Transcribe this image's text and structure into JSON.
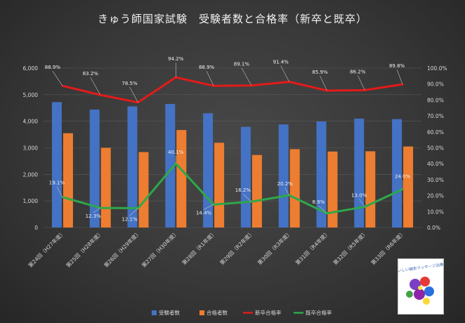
{
  "chart_data": {
    "type": "bar",
    "title": "きゅう師国家試験　受験者数と合格率（新卒と既卒）",
    "categories": [
      "第24回（H27年度）",
      "第25回（H28年度）",
      "第26回（H29年度）",
      "第27回（H30年度）",
      "第28回（R1年度）",
      "第29回（R2年度）",
      "第30回（R3年度）",
      "第31回（R4年度）",
      "第32回（R5年度）",
      "第33回（R6年度）"
    ],
    "y_left": {
      "ylim": [
        0,
        6000
      ],
      "ticks": [
        "0",
        "1,000",
        "2,000",
        "3,000",
        "4,000",
        "5,000",
        "6,000"
      ]
    },
    "y_right": {
      "ylim": [
        0,
        100
      ],
      "ticks": [
        "0.0%",
        "10.0%",
        "20.0%",
        "30.0%",
        "40.0%",
        "50.0%",
        "60.0%",
        "70.0%",
        "80.0%",
        "90.0%",
        "100.0%"
      ]
    },
    "grid": true,
    "legend_position": "bottom",
    "series": [
      {
        "name": "受験者数",
        "type": "bar",
        "axis": "left",
        "color": "#4472C4",
        "values": [
          4720,
          4440,
          4560,
          4650,
          4300,
          3790,
          3880,
          3990,
          4100,
          4080
        ]
      },
      {
        "name": "合格者数",
        "type": "bar",
        "axis": "left",
        "color": "#ED7D31",
        "values": [
          3550,
          3000,
          2840,
          3670,
          3190,
          2730,
          2950,
          2860,
          2870,
          3050
        ]
      },
      {
        "name": "新卒合格率",
        "type": "line",
        "axis": "right",
        "color": "#E41A1A",
        "values": [
          88.9,
          83.2,
          78.5,
          94.2,
          88.9,
          89.1,
          91.4,
          85.9,
          86.2,
          89.8
        ],
        "labels": [
          "88.9%",
          "83.2%",
          "78.5%",
          "94.2%",
          "88.9%",
          "89.1%",
          "91.4%",
          "85.9%",
          "86.2%",
          "89.8%"
        ]
      },
      {
        "name": "既卒合格率",
        "type": "line",
        "axis": "right",
        "color": "#2EA84A",
        "values": [
          19.1,
          12.3,
          12.1,
          40.1,
          14.4,
          16.2,
          20.2,
          8.9,
          13.0,
          24.0
        ],
        "labels": [
          "19.1%",
          "12.3%",
          "12.1%",
          "40.1%",
          "14.4%",
          "16.2%",
          "20.2%",
          "8.9%",
          "13.0%",
          "24.0%"
        ]
      }
    ],
    "logo": {
      "text": "おいしい鍼灸マッサージ治療院"
    }
  }
}
